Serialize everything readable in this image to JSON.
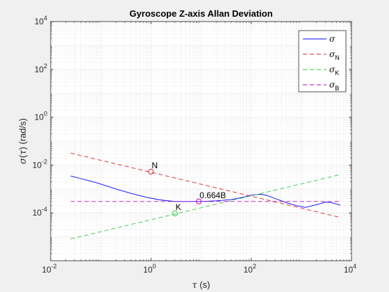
{
  "chart_data": {
    "type": "line",
    "title": "Gyroscope Z-axis Allan Deviation",
    "xlabel": {
      "sym": "τ",
      "rest": " (s)"
    },
    "ylabel": {
      "sym": "σ",
      "mid": "(",
      "sym2": "τ",
      "rest": ") (rad/s)"
    },
    "x_scale": "log",
    "y_scale": "log",
    "xlim": [
      0.01,
      10000
    ],
    "ylim": [
      1e-06,
      10000
    ],
    "grid": true,
    "minor_grid": true,
    "legend_position": "top-right",
    "x_ticks": [
      {
        "value": 0.01,
        "base": "10",
        "exp": "-2"
      },
      {
        "value": 1,
        "base": "10",
        "exp": "0"
      },
      {
        "value": 100,
        "base": "10",
        "exp": "2"
      },
      {
        "value": 10000,
        "base": "10",
        "exp": "4"
      }
    ],
    "y_ticks": [
      {
        "value": 0.0001,
        "base": "10",
        "exp": "-4"
      },
      {
        "value": 0.01,
        "base": "10",
        "exp": "-2"
      },
      {
        "value": 1,
        "base": "10",
        "exp": "0"
      },
      {
        "value": 100,
        "base": "10",
        "exp": "2"
      },
      {
        "value": 10000,
        "base": "10",
        "exp": "4"
      }
    ],
    "series": [
      {
        "name": "σ",
        "sym": "σ",
        "sub": "",
        "color": "#0000ff",
        "dash": "",
        "x": [
          0.025,
          0.04,
          0.07,
          0.1,
          0.2,
          0.4,
          0.8,
          1.5,
          3,
          6,
          10,
          20,
          40,
          70,
          100,
          150,
          200,
          300,
          500,
          800,
          1200,
          2000,
          3000,
          4000,
          6000
        ],
        "y": [
          0.0035,
          0.0027,
          0.002,
          0.0016,
          0.001,
          0.00065,
          0.00045,
          0.00035,
          0.0003,
          0.0003,
          0.0003,
          0.00032,
          0.00036,
          0.00045,
          0.00055,
          0.0006,
          0.00055,
          0.0004,
          0.00027,
          0.0002,
          0.00017,
          0.00022,
          0.00028,
          0.00027,
          0.00021
        ]
      },
      {
        "name": "σ_N",
        "sym": "σ",
        "sub": "N",
        "color": "#d62728",
        "dash": "6,4",
        "x": [
          0.025,
          6000
        ],
        "y": [
          0.0316,
          6.45e-05
        ]
      },
      {
        "name": "σ_K",
        "sym": "σ",
        "sub": "K",
        "color": "#2ecc40",
        "dash": "6,4",
        "x": [
          0.025,
          6000
        ],
        "y": [
          8.2e-06,
          0.004
        ]
      },
      {
        "name": "σ_B",
        "sym": "σ",
        "sub": "B",
        "color": "#c000c0",
        "dash": "6,4",
        "x": [
          0.025,
          6000
        ],
        "y": [
          0.0003,
          0.0003
        ]
      }
    ],
    "annotations": [
      {
        "label": "N",
        "x": 1,
        "y": 0.0053,
        "color": "#d62728"
      },
      {
        "label": "K",
        "x": 3,
        "y": 9.5e-05,
        "color": "#2ecc40"
      },
      {
        "label": "0.664B",
        "x": 9,
        "y": 0.0003,
        "color": "#c000c0"
      }
    ]
  }
}
